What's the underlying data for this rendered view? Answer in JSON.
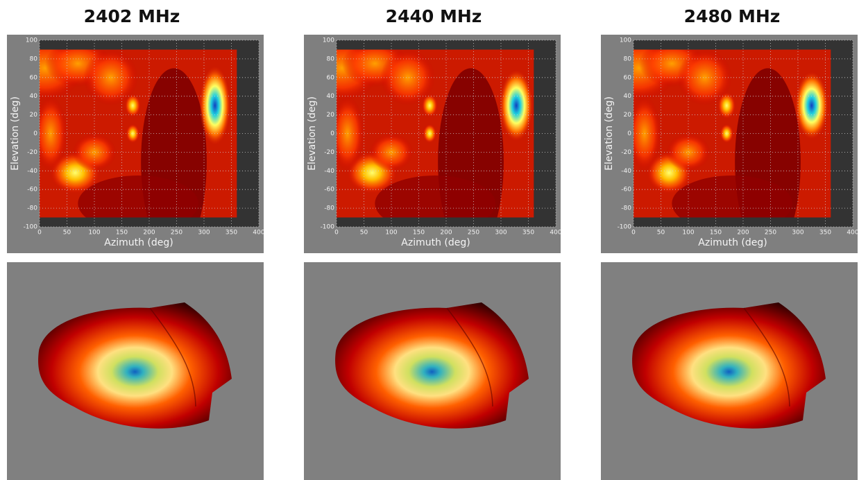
{
  "chart_data": [
    {
      "type": "heatmap",
      "title": "2402 MHz",
      "x_label": "Azimuth (deg)",
      "y_label": "Elevation (deg)",
      "xlim": [
        0,
        400
      ],
      "ylim": [
        -100,
        100
      ],
      "xticks": [
        0,
        50,
        100,
        150,
        200,
        250,
        300,
        350,
        400
      ],
      "yticks": [
        -100,
        -80,
        -60,
        -40,
        -20,
        0,
        20,
        40,
        60,
        80,
        100
      ],
      "grid": true
    },
    {
      "type": "heatmap",
      "title": "2440 MHz",
      "x_label": "Azimuth (deg)",
      "y_label": "Elevation (deg)",
      "xlim": [
        0,
        400
      ],
      "ylim": [
        -100,
        100
      ],
      "xticks": [
        0,
        50,
        100,
        150,
        200,
        250,
        300,
        350,
        400
      ],
      "yticks": [
        -100,
        -80,
        -60,
        -40,
        -20,
        0,
        20,
        40,
        60,
        80,
        100
      ],
      "grid": true
    },
    {
      "type": "heatmap",
      "title": "2480 MHz",
      "x_label": "Azimuth (deg)",
      "y_label": "Elevation (deg)",
      "xlim": [
        0,
        400
      ],
      "ylim": [
        -100,
        100
      ],
      "xticks": [
        0,
        50,
        100,
        150,
        200,
        250,
        300,
        350,
        400
      ],
      "yticks": [
        -100,
        -80,
        -60,
        -40,
        -20,
        0,
        20,
        40,
        60,
        80,
        100
      ],
      "grid": true
    }
  ]
}
